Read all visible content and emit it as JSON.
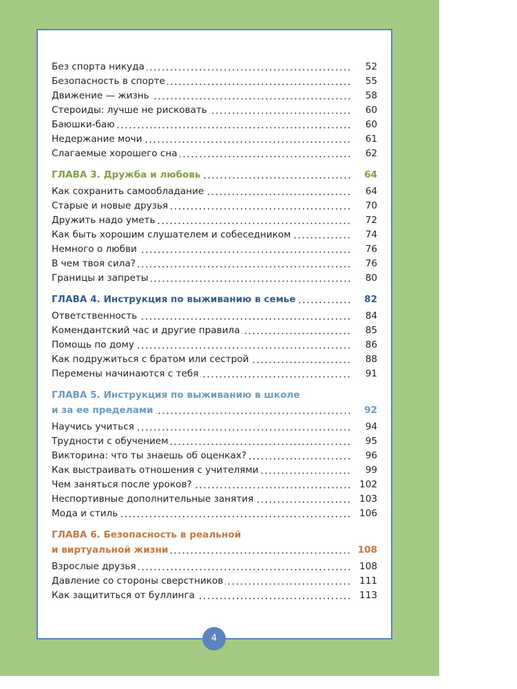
{
  "colors": {
    "background": "#a3c983",
    "border": "#5a82b8",
    "chapter3": "#7ea141",
    "chapter4": "#2e5d91",
    "chapter5": "#6a9bc6",
    "chapter6": "#c8783e"
  },
  "intro_items": [
    {
      "title": "Без спорта никуда",
      "page": "52"
    },
    {
      "title": "Безопасность в спорте",
      "page": "55"
    },
    {
      "title": "Движение — жизнь",
      "page": "58"
    },
    {
      "title": "Стероиды: лучше не рисковать",
      "page": "60"
    },
    {
      "title": "Баюшки-баю",
      "page": "60"
    },
    {
      "title": "Недержание мочи",
      "page": "61"
    },
    {
      "title": "Слагаемые хорошего сна",
      "page": "62"
    }
  ],
  "chapters": [
    {
      "title_lines": [
        "ГЛАВА 3. Дружба и любовь"
      ],
      "page": "64",
      "items": [
        {
          "title": "Как сохранить самообладание",
          "page": "64"
        },
        {
          "title": "Старые и новые друзья",
          "page": "70"
        },
        {
          "title": "Дружить надо уметь",
          "page": "72"
        },
        {
          "title": "Как быть хорошим слушателем и собеседником",
          "page": "74"
        },
        {
          "title": "Немного о любви",
          "page": "76"
        },
        {
          "title": "В чем твоя сила?",
          "page": "76"
        },
        {
          "title": "Границы и запреты",
          "page": "80"
        }
      ]
    },
    {
      "title_lines": [
        "ГЛАВА 4. Инструкция по выживанию в семье"
      ],
      "page": "82",
      "items": [
        {
          "title": "Ответственность",
          "page": "84"
        },
        {
          "title": "Комендантский час и другие правила",
          "page": "85"
        },
        {
          "title": "Помощь по дому",
          "page": "86"
        },
        {
          "title": "Как подружиться с братом или сестрой",
          "page": "88"
        },
        {
          "title": "Перемены начинаются с тебя",
          "page": "91"
        }
      ]
    },
    {
      "title_lines": [
        "ГЛАВА 5. Инструкция по выживанию в школе",
        "и за ее пределами"
      ],
      "page": "92",
      "items": [
        {
          "title": "Научись учиться",
          "page": "94"
        },
        {
          "title": "Трудности с обучением",
          "page": "95"
        },
        {
          "title": "Викторина: что ты знаешь об оценках?",
          "page": "96"
        },
        {
          "title": "Как выстраивать отношения с учителями",
          "page": "99"
        },
        {
          "title": "Чем заняться после уроков?",
          "page": "102"
        },
        {
          "title": "Неспортивные дополнительные занятия",
          "page": "103"
        },
        {
          "title": "Мода и стиль",
          "page": "106"
        }
      ]
    },
    {
      "title_lines": [
        "ГЛАВА 6. Безопасность в реальной",
        "и виртуальной жизни"
      ],
      "page": "108",
      "items": [
        {
          "title": "Взрослые друзья",
          "page": "108"
        },
        {
          "title": "Давление со стороны сверстников",
          "page": "111"
        },
        {
          "title": "Как защититься от буллинга",
          "page": "113"
        }
      ]
    }
  ],
  "page_number": "4"
}
